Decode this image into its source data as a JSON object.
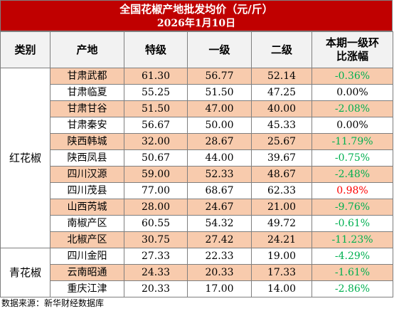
{
  "title": "全国花椒产地批发均价（元/斤）",
  "date": "2026年1月10日",
  "headers": {
    "category": "类别",
    "origin": "产地",
    "special": "特级",
    "first": "一级",
    "second": "二级",
    "change_line1": "本期一级环",
    "change_line2": "比涨幅"
  },
  "groups": [
    {
      "category": "红花椒",
      "rows": [
        {
          "origin": "甘肃武都",
          "special": "61.30",
          "first": "56.77",
          "second": "52.14",
          "change": "-0.36%",
          "trend": "down"
        },
        {
          "origin": "甘肃临夏",
          "special": "55.25",
          "first": "51.50",
          "second": "47.25",
          "change": "0.00%",
          "trend": "flat"
        },
        {
          "origin": "甘肃甘谷",
          "special": "51.50",
          "first": "47.00",
          "second": "40.00",
          "change": "-2.08%",
          "trend": "down"
        },
        {
          "origin": "甘肃秦安",
          "special": "56.67",
          "first": "50.00",
          "second": "45.33",
          "change": "0.00%",
          "trend": "flat"
        },
        {
          "origin": "陕西韩城",
          "special": "32.00",
          "first": "28.67",
          "second": "25.67",
          "change": "-11.79%",
          "trend": "down"
        },
        {
          "origin": "陕西凤县",
          "special": "50.67",
          "first": "44.00",
          "second": "39.67",
          "change": "-0.75%",
          "trend": "down"
        },
        {
          "origin": "四川汉源",
          "special": "59.00",
          "first": "52.33",
          "second": "48.67",
          "change": "-2.48%",
          "trend": "down"
        },
        {
          "origin": "四川茂县",
          "special": "77.00",
          "first": "68.67",
          "second": "62.33",
          "change": "0.98%",
          "trend": "up"
        },
        {
          "origin": "山西芮城",
          "special": "28.00",
          "first": "24.67",
          "second": "21.00",
          "change": "-9.76%",
          "trend": "down"
        },
        {
          "origin": "南椒产区",
          "special": "60.55",
          "first": "54.32",
          "second": "49.72",
          "change": "-0.61%",
          "trend": "down"
        },
        {
          "origin": "北椒产区",
          "special": "30.75",
          "first": "27.42",
          "second": "24.21",
          "change": "-11.23%",
          "trend": "down"
        }
      ]
    },
    {
      "category": "青花椒",
      "rows": [
        {
          "origin": "四川金阳",
          "special": "27.33",
          "first": "22.33",
          "second": "19.00",
          "change": "-4.29%",
          "trend": "down"
        },
        {
          "origin": "云南昭通",
          "special": "24.33",
          "first": "20.33",
          "second": "17.33",
          "change": "-1.61%",
          "trend": "down"
        },
        {
          "origin": "重庆江津",
          "special": "20.33",
          "first": "17.00",
          "second": "14.00",
          "change": "-2.86%",
          "trend": "down"
        }
      ]
    }
  ],
  "colors": {
    "title_bg": "#c00000",
    "row_shade": "#f8cbad",
    "up": "#ff0000",
    "down": "#00b050"
  },
  "source": "数据来源：新华财经数据库"
}
